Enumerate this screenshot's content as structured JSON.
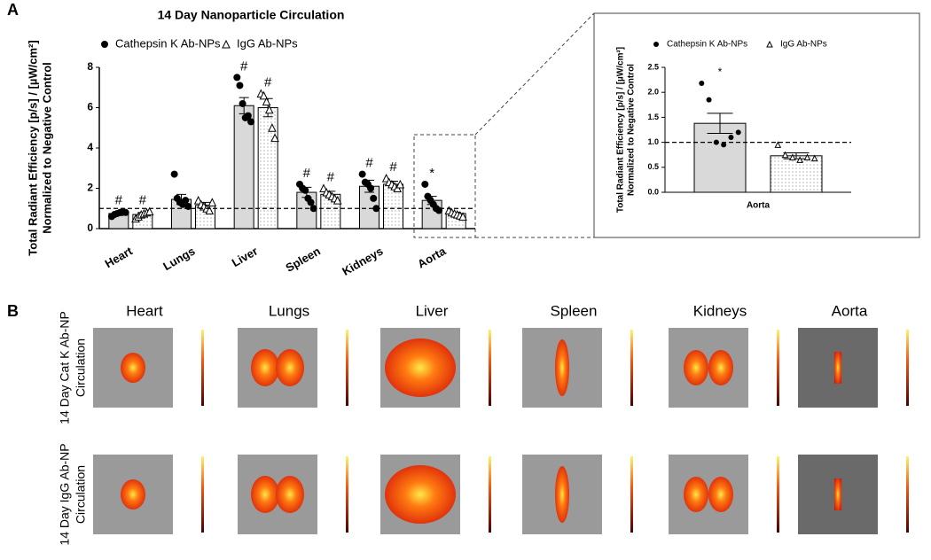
{
  "panel_a_label": "A",
  "panel_b_label": "B",
  "chart_data": [
    {
      "type": "bar",
      "title": "14 Day Nanoparticle Circulation",
      "y_label": [
        "Total Radiant Efficiency [p/s] / [µW/cm²]",
        "Normalized to Negative Control"
      ],
      "categories": [
        "Heart",
        "Lungs",
        "Liver",
        "Spleen",
        "Kidneys",
        "Aorta"
      ],
      "ylim": [
        0,
        8
      ],
      "yticks": [
        0,
        2,
        4,
        6,
        8
      ],
      "hline": 1,
      "legend": "top",
      "series": [
        {
          "name": "Cathepsin K Ab-NPs",
          "color": "#d9d9d9",
          "marker": "circle",
          "pattern": "none",
          "values": [
            0.75,
            1.45,
            6.1,
            1.8,
            2.1,
            1.4
          ],
          "errors": [
            0.1,
            0.25,
            0.4,
            0.25,
            0.3,
            0.2
          ],
          "annotations": [
            "#",
            null,
            "#",
            "#",
            "#",
            "*"
          ],
          "points": [
            [
              0.6,
              0.7,
              0.75,
              0.8,
              0.85,
              0.8
            ],
            [
              2.7,
              1.5,
              1.3,
              1.2,
              1.4,
              1.1
            ],
            [
              7.5,
              7.1,
              6.2,
              5.5,
              5.6,
              5.3
            ],
            [
              2.2,
              2.0,
              1.9,
              1.5,
              1.3,
              1.0
            ],
            [
              2.7,
              2.3,
              2.2,
              2.0,
              1.5,
              1.0
            ],
            [
              2.2,
              1.6,
              1.4,
              1.2,
              1.0,
              0.9
            ]
          ]
        },
        {
          "name": "IgG Ab-NPs",
          "color": "#ffffff",
          "marker": "triangle",
          "pattern": "dots",
          "values": [
            0.7,
            1.15,
            6.0,
            1.7,
            2.2,
            0.75
          ],
          "errors": [
            0.1,
            0.15,
            0.45,
            0.15,
            0.15,
            0.06
          ],
          "annotations": [
            "#",
            null,
            "#",
            "#",
            "#",
            null
          ],
          "points": [
            [
              0.5,
              0.6,
              0.7,
              0.75,
              0.8,
              0.85
            ],
            [
              1.4,
              1.2,
              1.1,
              1.0,
              0.9,
              1.3
            ],
            [
              6.7,
              6.6,
              6.3,
              5.9,
              5.0,
              4.5
            ],
            [
              2.0,
              1.8,
              1.7,
              1.6,
              1.5,
              1.4
            ],
            [
              2.5,
              2.3,
              2.2,
              2.1,
              2.0,
              2.2
            ],
            [
              0.9,
              0.8,
              0.75,
              0.7,
              0.65,
              0.6
            ]
          ]
        }
      ]
    },
    {
      "type": "bar",
      "y_label": [
        "Total Radiant Efficiency [p/s] / [µW/cm²]",
        "Normalized to Negative Control"
      ],
      "categories": [
        "Aorta"
      ],
      "ylim": [
        0,
        2.5
      ],
      "yticks": [
        {
          "value": 0,
          "label": "0.0"
        },
        0.5,
        {
          "value": 1,
          "label": "1.0"
        },
        1.5,
        {
          "value": 2,
          "label": "2.0"
        },
        2.5
      ],
      "hline": 1,
      "legend": "top",
      "series": [
        {
          "name": "Cathepsin K Ab-NPs",
          "color": "#d9d9d9",
          "marker": "circle",
          "pattern": "none",
          "values": [
            1.38
          ],
          "errors": [
            0.2
          ],
          "annotations": [
            "*"
          ],
          "points": [
            [
              2.18,
              1.85,
              1.0,
              0.95,
              1.1,
              1.2
            ]
          ]
        },
        {
          "name": "IgG Ab-NPs",
          "color": "#ffffff",
          "marker": "triangle",
          "pattern": "dots",
          "values": [
            0.73
          ],
          "errors": [
            0.06
          ],
          "annotations": [
            null
          ],
          "points": [
            [
              0.95,
              0.75,
              0.7,
              0.65,
              0.7,
              0.68
            ]
          ]
        }
      ]
    }
  ],
  "panel_b": {
    "columns": [
      "Heart",
      "Lungs",
      "Liver",
      "Spleen",
      "Kidneys",
      "Aorta"
    ],
    "rows": [
      [
        "14 Day Cat K Ab-NP",
        "Circulation"
      ],
      [
        "14 Day IgG Ab-NP",
        "Circulation"
      ]
    ]
  }
}
